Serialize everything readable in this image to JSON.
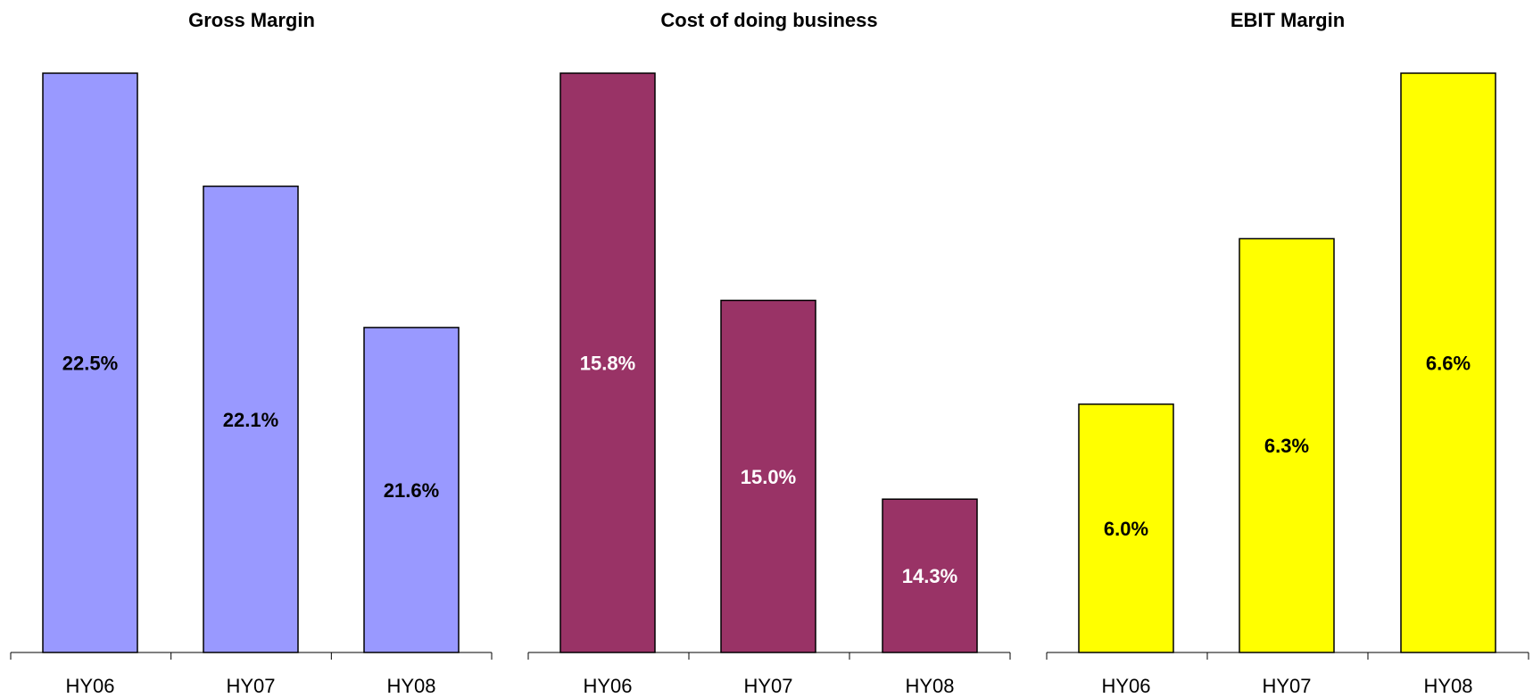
{
  "chart_data": [
    {
      "type": "bar",
      "title": "Gross Margin",
      "categories": [
        "HY06",
        "HY07",
        "HY08"
      ],
      "values": [
        22.5,
        22.1,
        21.6
      ],
      "value_labels": [
        "22.5%",
        "22.1%",
        "21.6%"
      ],
      "ylim": [
        20.45,
        22.5
      ],
      "bar_color": "#9999FF",
      "label_color": "#000000",
      "grid": false
    },
    {
      "type": "bar",
      "title": "Cost of doing business",
      "categories": [
        "HY06",
        "HY07",
        "HY08"
      ],
      "values": [
        15.8,
        15.0,
        14.3
      ],
      "value_labels": [
        "15.8%",
        "15.0%",
        "14.3%"
      ],
      "ylim": [
        13.76,
        15.8
      ],
      "bar_color": "#993366",
      "label_color": "#FFFFFF",
      "grid": false
    },
    {
      "type": "bar",
      "title": "EBIT Margin",
      "categories": [
        "HY06",
        "HY07",
        "HY08"
      ],
      "values": [
        6.0,
        6.3,
        6.6
      ],
      "value_labels": [
        "6.0%",
        "6.3%",
        "6.6%"
      ],
      "ylim": [
        5.55,
        6.6
      ],
      "bar_color": "#FFFF00",
      "label_color": "#000000",
      "grid": false
    }
  ]
}
